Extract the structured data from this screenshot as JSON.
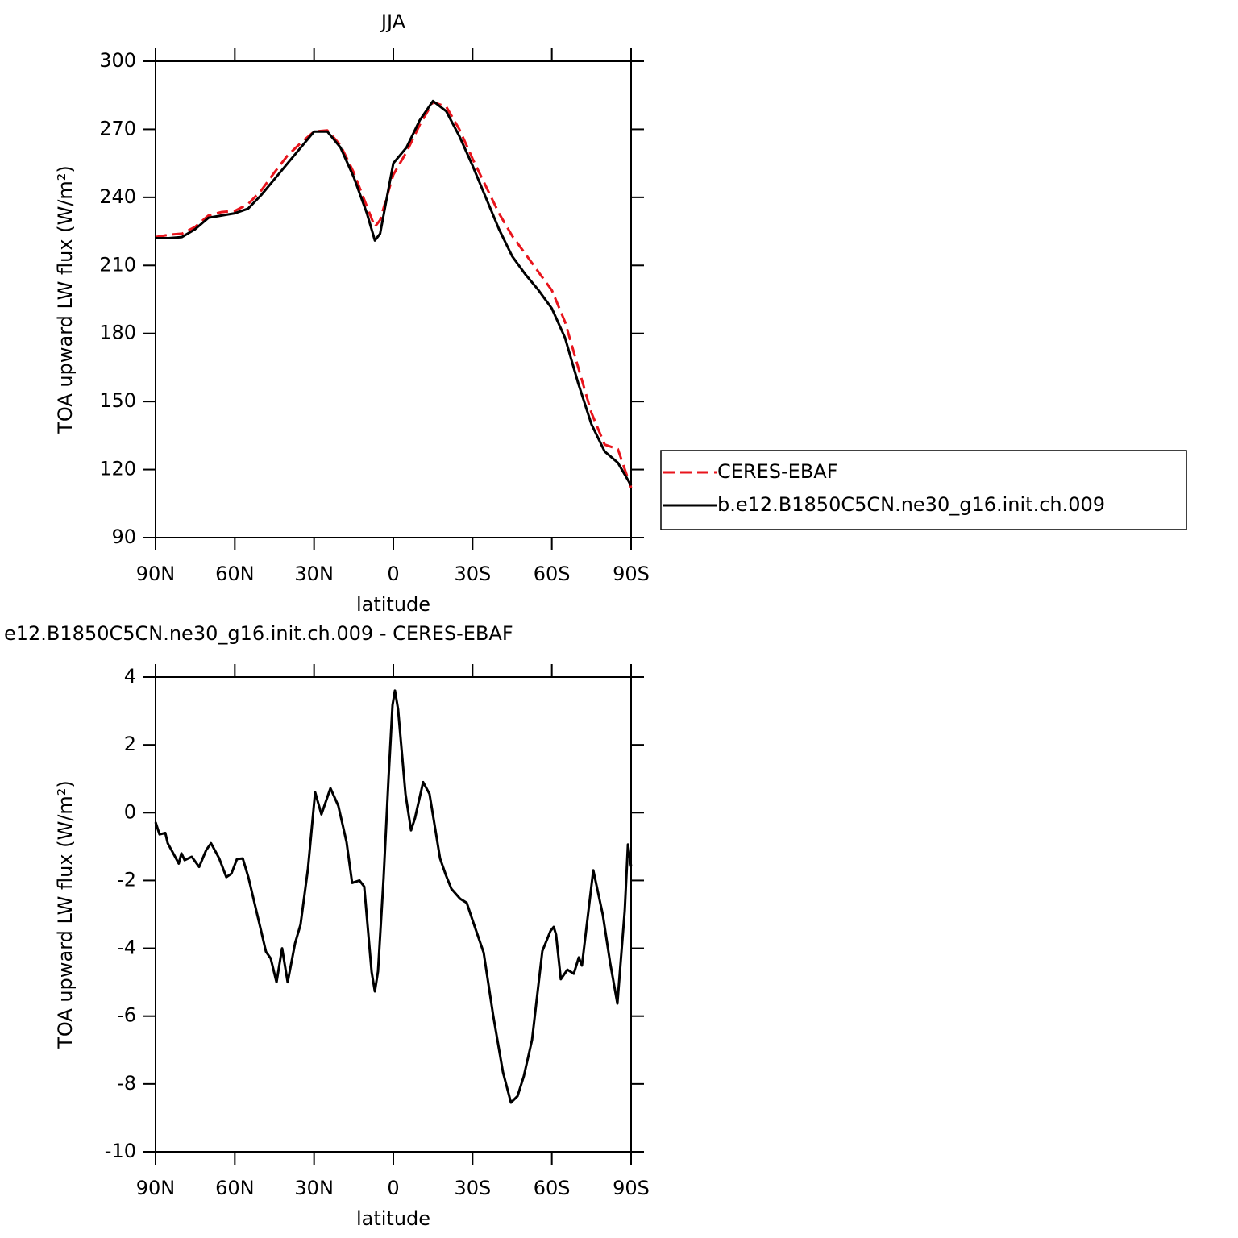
{
  "chart_data": [
    {
      "type": "line",
      "title": "JJA",
      "x_label": "latitude",
      "y_label": "TOA upward LW flux (W/m²)",
      "x": [
        90,
        85,
        80,
        75,
        70,
        65,
        60,
        55,
        50,
        45,
        40,
        35,
        30,
        25,
        20,
        15,
        10,
        7,
        5,
        0,
        -5,
        -10,
        -15,
        -20,
        -25,
        -30,
        -35,
        -40,
        -45,
        -50,
        -55,
        -60,
        -65,
        -70,
        -75,
        -80,
        -85,
        -90
      ],
      "series": [
        {
          "name": "CERES-EBAF",
          "color": "#e8141c",
          "line_style": "dashed",
          "values": [
            222.5,
            223.5,
            224,
            227,
            232,
            233.5,
            234,
            237,
            243,
            251,
            258.5,
            264,
            269,
            269.5,
            263,
            251,
            236,
            227,
            230,
            250,
            260,
            272,
            282,
            280,
            270,
            257,
            245,
            233,
            223,
            215,
            207,
            199,
            185,
            165,
            145,
            131,
            129,
            112
          ]
        },
        {
          "name": "b.e12.B1850C5CN.ne30_g16.init.ch.009",
          "color": "#000000",
          "line_style": "solid",
          "values": [
            222,
            222,
            222.5,
            226,
            231,
            232,
            233,
            235,
            241,
            248,
            255,
            262,
            269,
            269,
            262,
            249,
            233,
            221,
            224,
            255,
            262,
            274,
            282.5,
            278,
            267,
            254,
            240,
            226,
            214,
            206,
            199,
            191,
            178,
            158,
            140,
            128,
            123,
            113
          ]
        }
      ],
      "xlim": [
        90,
        -90
      ],
      "xticks": [
        {
          "value": 90,
          "label": "90N"
        },
        {
          "value": 60,
          "label": "60N"
        },
        {
          "value": 30,
          "label": "30N"
        },
        0,
        {
          "value": -30,
          "label": "30S"
        },
        {
          "value": -60,
          "label": "60S"
        },
        {
          "value": -90,
          "label": "90S"
        }
      ],
      "ylim": [
        90,
        300
      ],
      "yticks": [
        90,
        120,
        150,
        180,
        210,
        240,
        270,
        300
      ],
      "legend": "right"
    },
    {
      "type": "line",
      "title": "e12.B1850C5CN.ne30_g16.init.ch.009 - CERES-EBAF",
      "x_label": "latitude",
      "y_label": "TOA upward LW flux (W/m²)",
      "x": [
        90,
        88.5,
        86.3,
        85.4,
        83.3,
        81.2,
        80.2,
        79,
        76.3,
        73.5,
        70.8,
        69,
        65.9,
        63.2,
        61.3,
        59.2,
        57,
        54.9,
        50,
        48.2,
        46.4,
        44.2,
        42.1,
        40,
        37.2,
        35.1,
        32.3,
        29.6,
        27.2,
        23.8,
        20.8,
        17.7,
        15.6,
        12.8,
        11,
        8.2,
        7,
        5.8,
        3.7,
        1.8,
        0.3,
        -0.6,
        -1.8,
        -4.6,
        -6.7,
        -8.2,
        -11.3,
        -13.7,
        -17.7,
        -19.8,
        -22,
        -25.3,
        -27.8,
        -29.6,
        -31.7,
        -34.2,
        -37.8,
        -41.5,
        -44.5,
        -47,
        -49.4,
        -52.5,
        -56.4,
        -59.5,
        -60.7,
        -61.6,
        -63.4,
        -65.9,
        -68.3,
        -70.2,
        -71.4,
        -75.7,
        -79.3,
        -82.1,
        -84.8,
        -87.6,
        -88.8,
        -90
      ],
      "values": [
        -0.28,
        -0.64,
        -0.6,
        -0.9,
        -1.2,
        -1.5,
        -1.2,
        -1.4,
        -1.3,
        -1.6,
        -1.1,
        -0.9,
        -1.35,
        -1.9,
        -1.8,
        -1.37,
        -1.35,
        -1.9,
        -3.5,
        -4.1,
        -4.3,
        -5,
        -4,
        -5,
        -3.85,
        -3.3,
        -1.65,
        0.6,
        -0.05,
        0.72,
        0.2,
        -0.87,
        -2.07,
        -2,
        -2.18,
        -4.7,
        -5.27,
        -4.68,
        -1.94,
        1.03,
        3.17,
        3.6,
        3.05,
        0.55,
        -0.52,
        -0.16,
        0.9,
        0.55,
        -1.35,
        -1.82,
        -2.25,
        -2.54,
        -2.66,
        -3.08,
        -3.56,
        -4.13,
        -5.98,
        -7.65,
        -8.55,
        -8.36,
        -7.77,
        -6.7,
        -4.08,
        -3.49,
        -3.37,
        -3.6,
        -4.91,
        -4.63,
        -4.75,
        -4.27,
        -4.51,
        -1.7,
        -3.01,
        -4.44,
        -5.63,
        -2.89,
        -0.94,
        -1.59
      ],
      "color": "#000000",
      "xlim": [
        90,
        -90
      ],
      "xticks": [
        {
          "value": 90,
          "label": "90N"
        },
        {
          "value": 60,
          "label": "60N"
        },
        {
          "value": 30,
          "label": "30N"
        },
        0,
        {
          "value": -30,
          "label": "30S"
        },
        {
          "value": -60,
          "label": "60S"
        },
        {
          "value": -90,
          "label": "90S"
        }
      ],
      "ylim": [
        -10,
        4
      ],
      "yticks": [
        -10,
        -8,
        -6,
        -4,
        -2,
        0,
        2,
        4
      ]
    }
  ]
}
